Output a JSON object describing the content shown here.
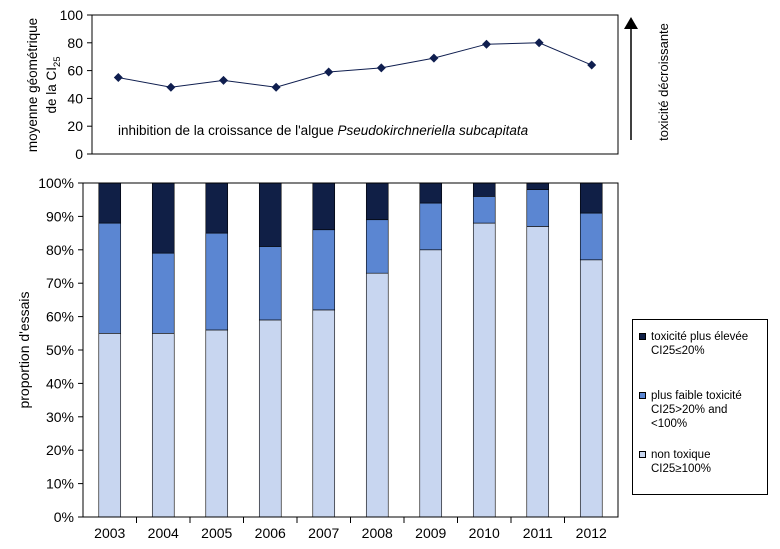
{
  "chart_data": [
    {
      "type": "line",
      "ylabel_line1": "moyenne géométrique",
      "ylabel_line2_prefix": "de la CI",
      "ylabel_line2_sub": "25",
      "ylim": [
        0,
        100
      ],
      "yticks": [
        0,
        20,
        40,
        60,
        80,
        100
      ],
      "x": [
        "2003",
        "2004",
        "2005",
        "2006",
        "2007",
        "2008",
        "2009",
        "2010",
        "2011",
        "2012"
      ],
      "values": [
        55,
        48,
        53,
        48,
        59,
        62,
        69,
        79,
        80,
        64
      ],
      "annotation_prefix": "inhibition de la croissance de l'algue ",
      "annotation_italic": "Pseudokirchneriella subcapitata",
      "arrow_label": "toxicité décroissante",
      "marker_color": "#0f1e4f"
    },
    {
      "type": "bar",
      "stacked": true,
      "ylabel": "proportion d'essais",
      "ylim": [
        0,
        100
      ],
      "yticks": [
        "0%",
        "10%",
        "20%",
        "30%",
        "40%",
        "50%",
        "60%",
        "70%",
        "80%",
        "90%",
        "100%"
      ],
      "categories": [
        "2003",
        "2004",
        "2005",
        "2006",
        "2007",
        "2008",
        "2009",
        "2010",
        "2011",
        "2012"
      ],
      "series": [
        {
          "name": "non toxique CI25≥100%",
          "color": "#c8d6f0",
          "values": [
            55,
            55,
            56,
            59,
            62,
            73,
            80,
            88,
            87,
            77
          ]
        },
        {
          "name": "plus faible toxicité CI25>20% and <100%",
          "color": "#5b86d2",
          "values": [
            33,
            24,
            29,
            22,
            24,
            16,
            14,
            8,
            11,
            14
          ]
        },
        {
          "name": "toxicité plus élevée CI25≤20%",
          "color": "#101f46",
          "values": [
            12,
            21,
            15,
            19,
            14,
            11,
            6,
            4,
            2,
            9
          ]
        }
      ],
      "legend": [
        {
          "text": "toxicité plus élevée\nCI25≤20%",
          "color": "#101f46"
        },
        {
          "text": "plus faible toxicité\nCI25>20% and\n<100%",
          "color": "#5b86d2"
        },
        {
          "text": "non toxique\nCI25≥100%",
          "color": "#c8d6f0"
        }
      ]
    }
  ]
}
